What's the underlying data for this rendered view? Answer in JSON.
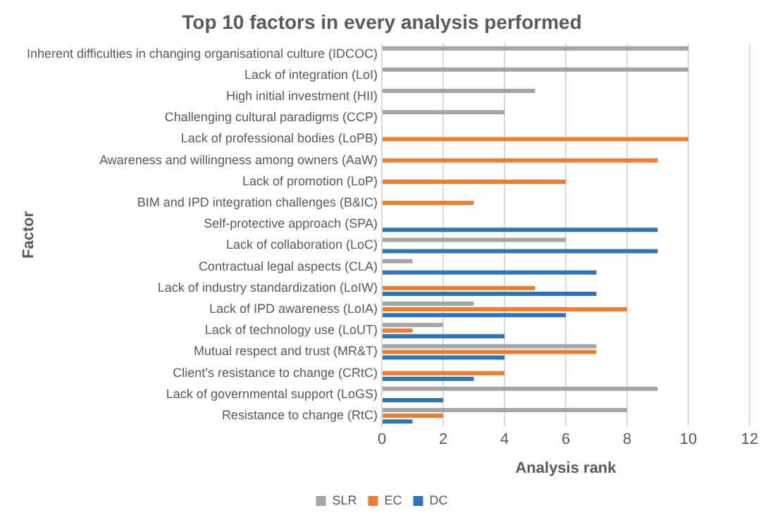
{
  "chart_data": {
    "type": "bar",
    "orientation": "horizontal",
    "title": "Top 10 factors in every analysis performed",
    "xlabel": "Analysis rank",
    "ylabel": "Factor",
    "categories": [
      "Inherent difficulties in changing organisational culture (IDCOC)",
      "Lack of integration (LoI)",
      "High initial investment (HII)",
      "Challenging cultural paradigms (CCP)",
      "Lack of professional bodies (LoPB)",
      "Awareness and willingness among owners (AaW)",
      "Lack of promotion (LoP)",
      "BIM and IPD integration challenges (B&IC)",
      "Self-protective approach (SPA)",
      "Lack of collaboration (LoC)",
      "Contractual legal aspects (CLA)",
      "Lack of industry standardization (LoIW)",
      "Lack of IPD awareness (LoIA)",
      "Lack of technology use (LoUT)",
      "Mutual respect and trust (MR&T)",
      "Client’s resistance to change (CRtC)",
      "Lack of governmental support (LoGS)",
      "Resistance to change (RtC)"
    ],
    "series": [
      {
        "name": "SLR",
        "color": "#a5a5a5",
        "values": [
          10,
          10,
          5,
          4,
          null,
          null,
          null,
          null,
          null,
          6,
          1,
          null,
          3,
          2,
          7,
          null,
          9,
          8
        ]
      },
      {
        "name": "EC",
        "color": "#ed7d31",
        "values": [
          null,
          null,
          null,
          null,
          10,
          9,
          6,
          3,
          null,
          null,
          null,
          5,
          8,
          1,
          7,
          4,
          null,
          2
        ]
      },
      {
        "name": "DC",
        "color": "#2e75b6",
        "values": [
          null,
          null,
          null,
          null,
          null,
          null,
          null,
          null,
          9,
          9,
          7,
          7,
          6,
          4,
          4,
          3,
          2,
          1
        ]
      }
    ],
    "xlim": [
      0,
      12
    ],
    "xticks": [
      0,
      2,
      4,
      6,
      8,
      10,
      12
    ],
    "grid": "x",
    "legend": "bottom"
  }
}
